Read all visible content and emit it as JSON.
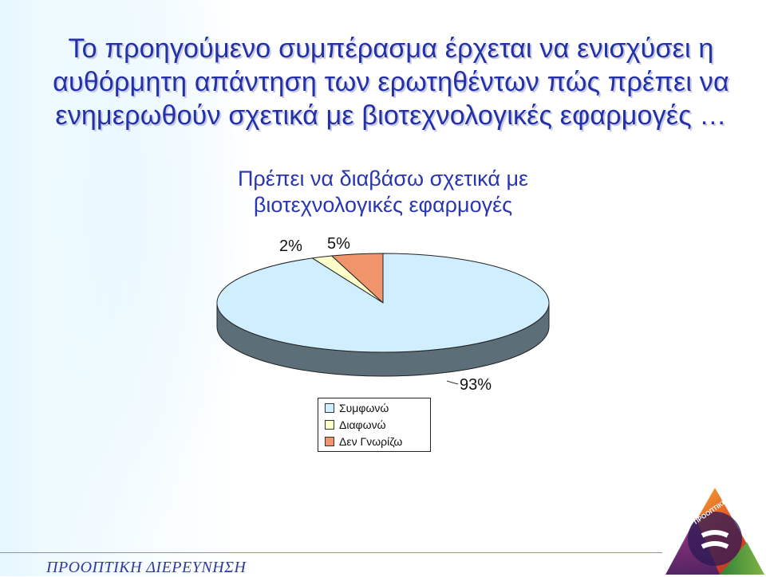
{
  "slide": {
    "title": "Το προηγούμενο συμπέρασμα έρχεται να ενισχύσει η αυθόρμητη απάντηση των ερωτηθέντων πώς πρέπει να ενημερωθούν σχετικά με βιοτεχνολογικές εφαρμογές …",
    "footer": "ΠΡΟΟΠΤΙΚΗ ΔΙΕΡΕΥΝΗΣΗ",
    "logo_text": "ΠΡΟΟΠΤΙΚΗ ΔΙΕΡΕΥΝΗΣΗ"
  },
  "chart_data": {
    "type": "pie",
    "title": "Πρέπει να διαβάσω σχετικά με βιοτεχνολογικές εφαρμογές",
    "categories": [
      "Συμφωνώ",
      "Διαφωνώ",
      "Δεν Γνωρίζω"
    ],
    "values": [
      93,
      2,
      5
    ],
    "labels": [
      "93%",
      "2%",
      "5%"
    ],
    "colors": [
      "#cfeeff",
      "#ffffcc",
      "#f0946c"
    ],
    "side_color": "#5c6e78",
    "legend_position": "bottom"
  }
}
